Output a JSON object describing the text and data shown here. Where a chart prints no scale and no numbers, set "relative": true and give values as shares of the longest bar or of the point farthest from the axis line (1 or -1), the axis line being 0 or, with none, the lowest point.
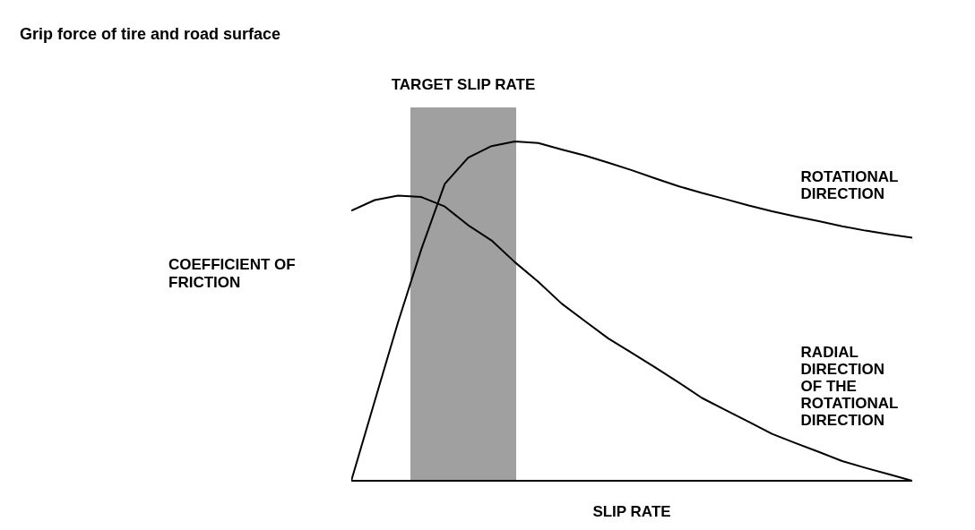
{
  "chart_data": {
    "type": "line",
    "title": "Grip force of tire and road surface",
    "xlabel": "SLIP RATE",
    "ylabel": "COEFFICIENT OF FRICTION",
    "relative": true,
    "grid": false,
    "legend": false,
    "marker": "none",
    "line_style": "solid",
    "categories": [
      null,
      null,
      null,
      null,
      null,
      null,
      null,
      null,
      null,
      null,
      null,
      null,
      null,
      null,
      null,
      null,
      null,
      null,
      null,
      null,
      null,
      null,
      null,
      null,
      null
    ],
    "series": [
      {
        "name": "ROTATIONAL DIRECTION",
        "color": "#000000",
        "values": [
          0,
          0.234,
          0.467,
          0.683,
          0.875,
          0.952,
          0.986,
          1,
          0.995,
          0.976,
          0.958,
          0.937,
          0.915,
          0.891,
          0.868,
          0.848,
          0.83,
          0.811,
          0.794,
          0.779,
          0.765,
          0.75,
          0.737,
          0.726,
          0.716
        ]
      },
      {
        "name": "RADIAL DIRECTION OF THE ROTATIONAL DIRECTION",
        "color": "#000000",
        "values": [
          0.796,
          0.827,
          0.84,
          0.836,
          0.808,
          0.753,
          0.708,
          0.644,
          0.586,
          0.522,
          0.47,
          0.419,
          0.377,
          0.334,
          0.29,
          0.244,
          0.209,
          0.174,
          0.138,
          0.111,
          0.085,
          0.058,
          0.038,
          0.019,
          0
        ]
      }
    ],
    "annotations": [
      "TARGET SLIP RATE"
    ]
  }
}
